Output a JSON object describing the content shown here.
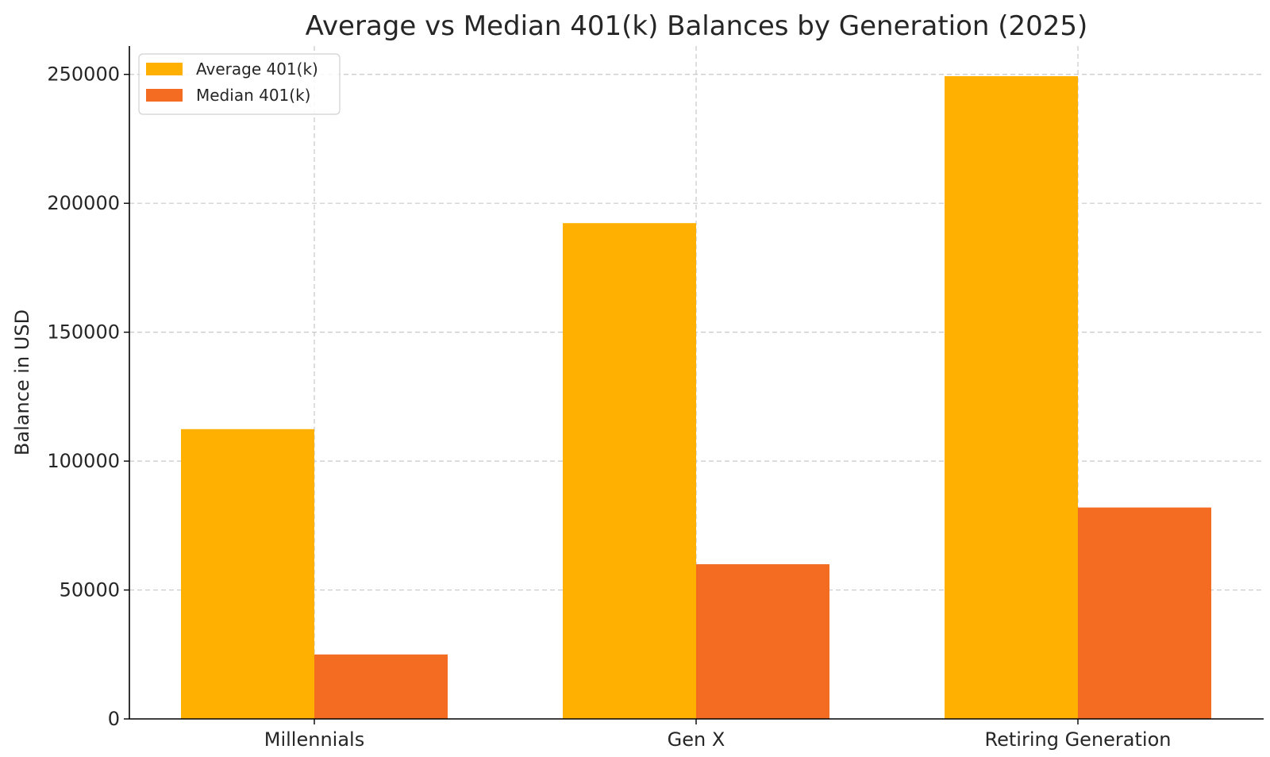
{
  "chart_data": {
    "type": "bar",
    "title": "Average vs Median 401(k) Balances by Generation (2025)",
    "xlabel": "",
    "ylabel": "Balance in USD",
    "categories": [
      "Millennials",
      "Gen X",
      "Retiring Generation"
    ],
    "series": [
      {
        "name": "Average 401(k)",
        "values": [
          112400,
          192300,
          249300
        ],
        "color": "#FFB000"
      },
      {
        "name": "Median 401(k)",
        "values": [
          25000,
          60000,
          82000
        ],
        "color": "#F46B22"
      }
    ],
    "ylim": [
      0,
      261000
    ],
    "yticks": [
      0,
      50000,
      100000,
      150000,
      200000,
      250000
    ],
    "grid": true,
    "legend_position": "top-left"
  }
}
